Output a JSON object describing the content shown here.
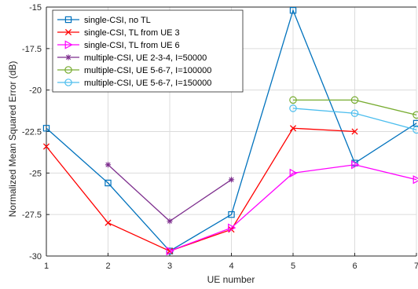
{
  "chart_data": {
    "type": "line",
    "xlabel": "UE number",
    "ylabel": "Normalized Mean Squared Error (dB)",
    "xlim": [
      1,
      7
    ],
    "ylim": [
      -30,
      -15
    ],
    "x_ticks": [
      "1",
      "2",
      "3",
      "4",
      "5",
      "6",
      "7"
    ],
    "y_ticks": [
      "-15",
      "-17.5",
      "-20",
      "-22.5",
      "-25",
      "-27.5",
      "-30"
    ],
    "grid": true,
    "legend_position": "top-left",
    "series": [
      {
        "name": "single-CSI, no TL",
        "color": "#0072BD",
        "marker": "square",
        "x": [
          1,
          2,
          3,
          4,
          5,
          6,
          7
        ],
        "y": [
          -22.3,
          -25.6,
          -29.7,
          -27.5,
          -15.2,
          -24.4,
          -22.0
        ]
      },
      {
        "name": "single-CSI, TL from UE 3",
        "color": "#FF0000",
        "marker": "x",
        "x": [
          1,
          2,
          3,
          4,
          5,
          6
        ],
        "y": [
          -23.4,
          -28.0,
          -29.7,
          -28.4,
          -22.3,
          -22.5
        ]
      },
      {
        "name": "single-CSI, TL from UE 6",
        "color": "#FF00FF",
        "marker": "triangle-right",
        "x": [
          3,
          4,
          5,
          6,
          7
        ],
        "y": [
          -29.7,
          -28.3,
          -25.0,
          -24.5,
          -25.4
        ]
      },
      {
        "name": "multiple-CSI, UE 2-3-4, I=50000",
        "color": "#7E2F8E",
        "marker": "star",
        "x": [
          2,
          3,
          4
        ],
        "y": [
          -24.5,
          -27.9,
          -25.4
        ]
      },
      {
        "name": "multiple-CSI, UE 5-6-7, I=100000",
        "color": "#77AC30",
        "marker": "circle",
        "x": [
          5,
          6,
          7
        ],
        "y": [
          -20.6,
          -20.6,
          -21.5
        ]
      },
      {
        "name": "multiple-CSI, UE 5-6-7, I=150000",
        "color": "#4DBEEE",
        "marker": "circle",
        "x": [
          5,
          6,
          7
        ],
        "y": [
          -21.1,
          -21.4,
          -22.4
        ]
      }
    ]
  }
}
